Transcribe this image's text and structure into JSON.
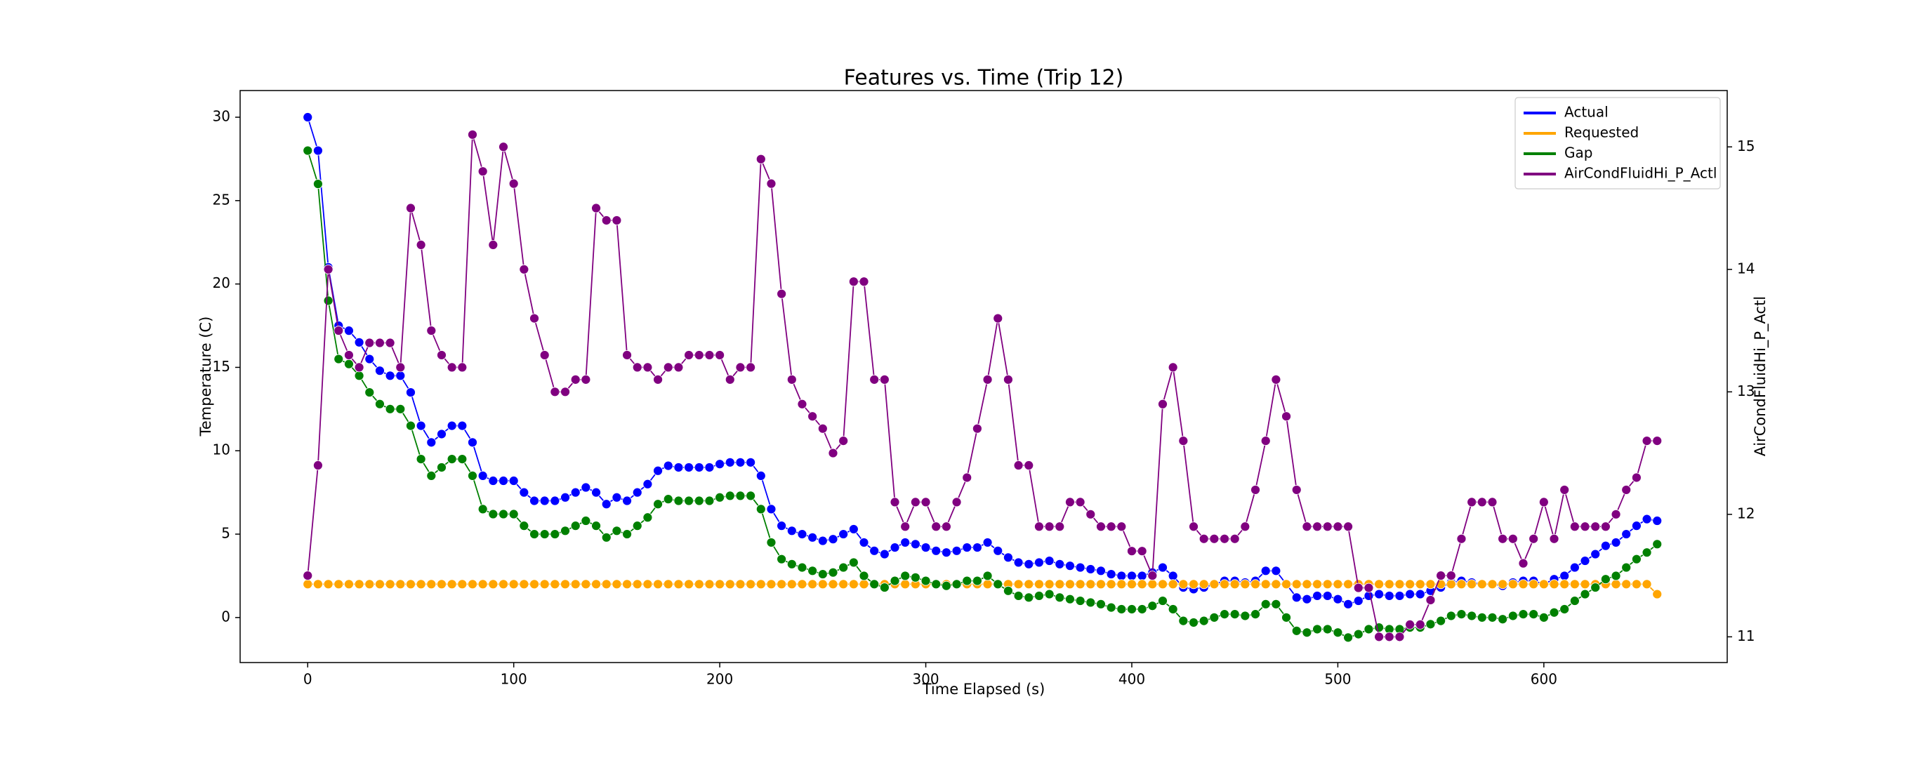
{
  "chart_data": {
    "type": "line",
    "title": "Features vs. Time (Trip 12)",
    "x_label": "Time Elapsed (s)",
    "y_label": "Temperature (C)",
    "y2_label": "AirCondFluidHi_P_Actl",
    "xlim": [
      -32.8,
      689
    ],
    "xticks": [
      0,
      100,
      200,
      300,
      400,
      500,
      600
    ],
    "ylim": [
      -2.7,
      31.6
    ],
    "yticks": [
      0,
      5,
      10,
      15,
      20,
      25,
      30
    ],
    "y2lim": [
      10.79,
      15.46
    ],
    "y2ticks": [
      11,
      12,
      13,
      14,
      15
    ],
    "legend": "upper right",
    "markers": true,
    "x": [
      0,
      5,
      10,
      15,
      20,
      25,
      30,
      35,
      40,
      45,
      50,
      55,
      60,
      65,
      70,
      75,
      80,
      85,
      90,
      95,
      100,
      105,
      110,
      115,
      120,
      125,
      130,
      135,
      140,
      145,
      150,
      155,
      160,
      165,
      170,
      175,
      180,
      185,
      190,
      195,
      200,
      205,
      210,
      215,
      220,
      225,
      230,
      235,
      240,
      245,
      250,
      255,
      260,
      265,
      270,
      275,
      280,
      285,
      290,
      295,
      300,
      305,
      310,
      315,
      320,
      325,
      330,
      335,
      340,
      345,
      350,
      355,
      360,
      365,
      370,
      375,
      380,
      385,
      390,
      395,
      400,
      405,
      410,
      415,
      420,
      425,
      430,
      435,
      440,
      445,
      450,
      455,
      460,
      465,
      470,
      475,
      480,
      485,
      490,
      495,
      500,
      505,
      510,
      515,
      520,
      525,
      530,
      535,
      540,
      545,
      550,
      555,
      560,
      565,
      570,
      575,
      580,
      585,
      590,
      595,
      600,
      605,
      610,
      615,
      620,
      625,
      630,
      635,
      640,
      645,
      650,
      655
    ],
    "series": [
      {
        "name": "Actual",
        "color": "#0000ff",
        "values": [
          30,
          28,
          21,
          17.5,
          17.2,
          16.5,
          15.5,
          14.8,
          14.5,
          14.5,
          13.5,
          11.5,
          10.5,
          11,
          11.5,
          11.5,
          10.5,
          8.5,
          8.2,
          8.2,
          8.2,
          7.5,
          7,
          7,
          7,
          7.2,
          7.5,
          7.8,
          7.5,
          6.8,
          7.2,
          7,
          7.5,
          8,
          8.8,
          9.1,
          9,
          9,
          9,
          9,
          9.2,
          9.3,
          9.3,
          9.3,
          8.5,
          6.5,
          5.5,
          5.2,
          5,
          4.8,
          4.6,
          4.7,
          5,
          5.3,
          4.5,
          4,
          3.8,
          4.2,
          4.5,
          4.4,
          4.2,
          4,
          3.9,
          4,
          4.2,
          4.2,
          4.5,
          4,
          3.6,
          3.3,
          3.2,
          3.3,
          3.4,
          3.2,
          3.1,
          3,
          2.9,
          2.8,
          2.6,
          2.5,
          2.5,
          2.5,
          2.7,
          3,
          2.5,
          1.8,
          1.7,
          1.8,
          2,
          2.2,
          2.2,
          2.1,
          2.2,
          2.8,
          2.8,
          2,
          1.2,
          1.1,
          1.3,
          1.3,
          1.1,
          0.8,
          1,
          1.3,
          1.4,
          1.3,
          1.3,
          1.4,
          1.4,
          1.6,
          1.8,
          2.1,
          2.2,
          2.1,
          2,
          2,
          1.9,
          2.1,
          2.2,
          2.2,
          2,
          2.3,
          2.5,
          3,
          3.4,
          3.8,
          4.3,
          4.5,
          5,
          5.5,
          5.9,
          5.8
        ]
      },
      {
        "name": "Requested",
        "color": "#ffa500",
        "values": [
          2,
          2,
          2,
          2,
          2,
          2,
          2,
          2,
          2,
          2,
          2,
          2,
          2,
          2,
          2,
          2,
          2,
          2,
          2,
          2,
          2,
          2,
          2,
          2,
          2,
          2,
          2,
          2,
          2,
          2,
          2,
          2,
          2,
          2,
          2,
          2,
          2,
          2,
          2,
          2,
          2,
          2,
          2,
          2,
          2,
          2,
          2,
          2,
          2,
          2,
          2,
          2,
          2,
          2,
          2,
          2,
          2,
          2,
          2,
          2,
          2,
          2,
          2,
          2,
          2,
          2,
          2,
          2,
          2,
          2,
          2,
          2,
          2,
          2,
          2,
          2,
          2,
          2,
          2,
          2,
          2,
          2,
          2,
          2,
          2,
          2,
          2,
          2,
          2,
          2,
          2,
          2,
          2,
          2,
          2,
          2,
          2,
          2,
          2,
          2,
          2,
          2,
          2,
          2,
          2,
          2,
          2,
          2,
          2,
          2,
          2,
          2,
          2,
          2,
          2,
          2,
          2,
          2,
          2,
          2,
          2,
          2,
          2,
          2,
          2,
          2,
          2,
          2,
          2,
          2,
          2,
          1.4
        ]
      },
      {
        "name": "Gap",
        "color": "#008000",
        "values": [
          28,
          26,
          19,
          15.5,
          15.2,
          14.5,
          13.5,
          12.8,
          12.5,
          12.5,
          11.5,
          9.5,
          8.5,
          9,
          9.5,
          9.5,
          8.5,
          6.5,
          6.2,
          6.2,
          6.2,
          5.5,
          5,
          5,
          5,
          5.2,
          5.5,
          5.8,
          5.5,
          4.8,
          5.2,
          5,
          5.5,
          6,
          6.8,
          7.1,
          7,
          7,
          7,
          7,
          7.2,
          7.3,
          7.3,
          7.3,
          6.5,
          4.5,
          3.5,
          3.2,
          3,
          2.8,
          2.6,
          2.7,
          3,
          3.3,
          2.5,
          2,
          1.8,
          2.2,
          2.5,
          2.4,
          2.2,
          2,
          1.9,
          2,
          2.2,
          2.2,
          2.5,
          2,
          1.6,
          1.3,
          1.2,
          1.3,
          1.4,
          1.2,
          1.1,
          1,
          0.9,
          0.8,
          0.6,
          0.5,
          0.5,
          0.5,
          0.7,
          1,
          0.5,
          -0.2,
          -0.3,
          -0.2,
          0,
          0.2,
          0.2,
          0.1,
          0.2,
          0.8,
          0.8,
          0,
          -0.8,
          -0.9,
          -0.7,
          -0.7,
          -0.9,
          -1.2,
          -1,
          -0.7,
          -0.6,
          -0.7,
          -0.7,
          -0.6,
          -0.6,
          -0.4,
          -0.2,
          0.1,
          0.2,
          0.1,
          0,
          0,
          -0.1,
          0.1,
          0.2,
          0.2,
          0,
          0.3,
          0.5,
          1,
          1.4,
          1.8,
          2.3,
          2.5,
          3,
          3.5,
          3.9,
          4.4
        ]
      },
      {
        "name": "AirCondFluidHi_P_Actl",
        "color": "#800080",
        "axis": "y2",
        "values": [
          11.5,
          12.4,
          14.0,
          13.5,
          13.3,
          13.2,
          13.4,
          13.4,
          13.4,
          13.2,
          14.5,
          14.2,
          13.5,
          13.3,
          13.2,
          13.2,
          15.1,
          14.8,
          14.2,
          15.0,
          14.7,
          14.0,
          13.6,
          13.3,
          13.0,
          13.0,
          13.1,
          13.1,
          14.5,
          14.4,
          14.4,
          13.3,
          13.2,
          13.2,
          13.1,
          13.2,
          13.2,
          13.3,
          13.3,
          13.3,
          13.3,
          13.1,
          13.2,
          13.2,
          14.9,
          14.7,
          13.8,
          13.1,
          12.9,
          12.8,
          12.7,
          12.5,
          12.6,
          13.9,
          13.9,
          13.1,
          13.1,
          12.1,
          11.9,
          12.1,
          12.1,
          11.9,
          11.9,
          12.1,
          12.3,
          12.7,
          13.1,
          13.6,
          13.1,
          12.4,
          12.4,
          11.9,
          11.9,
          11.9,
          12.1,
          12.1,
          12.0,
          11.9,
          11.9,
          11.9,
          11.7,
          11.7,
          11.5,
          12.9,
          13.2,
          12.6,
          11.9,
          11.8,
          11.8,
          11.8,
          11.8,
          11.9,
          12.2,
          12.6,
          13.1,
          12.8,
          12.2,
          11.9,
          11.9,
          11.9,
          11.9,
          11.9,
          11.4,
          11.4,
          11.0,
          11.0,
          11.0,
          11.1,
          11.1,
          11.3,
          11.5,
          11.5,
          11.8,
          12.1,
          12.1,
          12.1,
          11.8,
          11.8,
          11.6,
          11.8,
          12.1,
          11.8,
          12.2,
          11.9,
          11.9,
          11.9,
          11.9,
          12.0,
          12.2,
          12.3,
          12.6,
          12.6
        ]
      }
    ]
  }
}
